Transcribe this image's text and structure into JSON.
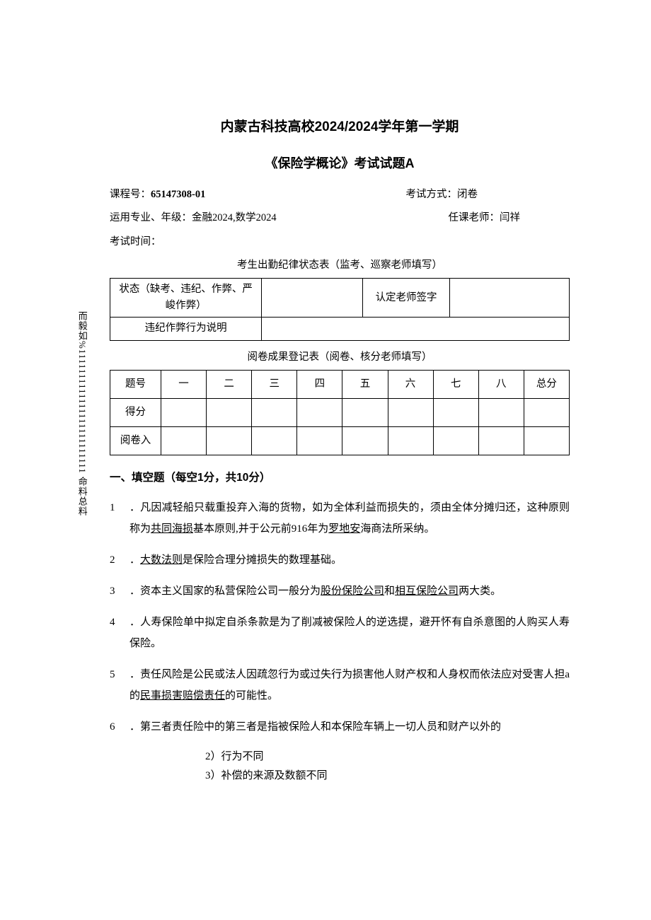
{
  "side_text": "而毅如%1111111111111111111111111 命料总料",
  "title_main": "内蒙古科技高校2024/2024学年第一学期",
  "title_sub": "《保险学概论》考试试题A",
  "info": {
    "course_label": "课程号：",
    "course_value": "65147308-01",
    "exam_type_label": "考试方式：闭卷",
    "major_label": "运用专业、年级：金融2024,数学2024",
    "teacher_label": "任课老师：闫祥",
    "exam_time_label": "考试时间："
  },
  "attendance": {
    "caption": "考生出勤纪律状态表（监考、巡察老师填写）",
    "r1c1": "状态（缺考、违纪、作弊、严峻作弊）",
    "r1c2": "",
    "r1c3": "认定老师签字",
    "r1c4": "",
    "r2c1": "违纪作弊行为说明",
    "r2c2": ""
  },
  "scores": {
    "caption": "阅卷成果登记表（阅卷、核分老师填写）",
    "row_labels": [
      "题号",
      "得分",
      "阅卷入"
    ],
    "cols": [
      "一",
      "二",
      "三",
      "四",
      "五",
      "六",
      "七",
      "八",
      "总分"
    ]
  },
  "section1": {
    "title": "一、填空题（每空1分，共10分）",
    "questions": [
      {
        "num": "1",
        "pre1": "．凡因减轻船只载重投弃入海的货物，如为全体利益而损失的，须由全体分摊归还，这种原则称为",
        "u1": "共同海损",
        "mid1": "基本原则,并于公元前916年为",
        "u2": "罗地安",
        "post": "海商法所采纳。"
      },
      {
        "num": "2",
        "pre1": "．",
        "u1": "大数法则",
        "post": "是保险合理分摊损失的数理基础。"
      },
      {
        "num": "3",
        "pre1": "．资本主义国家的私营保险公司一般分为",
        "u1": "股份保险公司",
        "mid1": "和",
        "u2": "相互保险公司",
        "post": "两大类。"
      },
      {
        "num": "4",
        "plain": "．人寿保险单中拟定自杀条款是为了削减被保险人的逆选提，避开怀有自杀意图的人购买人寿保险。"
      },
      {
        "num": "5",
        "pre1": "．责任风险是公民或法人因疏忽行为或过失行为损害他人财产权和人身权而依法应对受害人担a的",
        "u1": "民事损害赔偿责任",
        "post": "的可能性。"
      },
      {
        "num": "6",
        "plain": "．第三者责任险中的第三者是指被保险人和本保险车辆上一切人员和财产以外的"
      }
    ],
    "sub_lines": [
      "2）行为不同",
      "3）补偿的来源及数额不同"
    ]
  }
}
